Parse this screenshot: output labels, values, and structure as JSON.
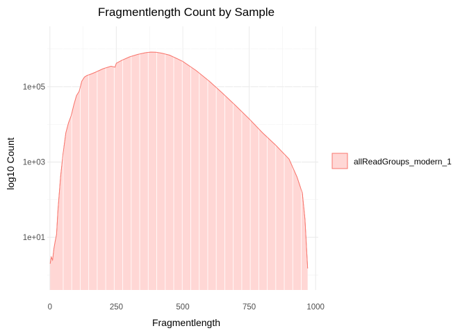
{
  "chart_data": {
    "type": "area",
    "title": "Fragmentlength Count by Sample",
    "xlabel": "Fragmentlength",
    "ylabel": "log10 Count",
    "x_scale": "linear",
    "y_scale": "log10",
    "xlim": [
      -10,
      1010
    ],
    "ylim": [
      0.4,
      4000000
    ],
    "x_ticks": [
      0,
      250,
      500,
      750,
      1000
    ],
    "x_tick_labels": [
      "0",
      "250",
      "500",
      "750",
      "1000"
    ],
    "y_ticks": [
      10,
      1000,
      100000
    ],
    "y_tick_labels": [
      "1e+01",
      "1e+03",
      "1e+05"
    ],
    "grid": true,
    "legend_position": "right",
    "series": [
      {
        "name": "allReadGroups_modern_1",
        "fill_color": "#ffd7d5",
        "line_color": "#f8766d",
        "x": [
          1,
          5,
          10,
          15,
          20,
          25,
          30,
          40,
          50,
          60,
          70,
          80,
          90,
          100,
          110,
          120,
          130,
          140,
          150,
          170,
          200,
          230,
          245,
          250,
          270,
          300,
          330,
          360,
          380,
          400,
          420,
          450,
          480,
          500,
          550,
          600,
          650,
          700,
          750,
          800,
          850,
          900,
          930,
          950,
          960,
          970
        ],
        "y": [
          2,
          3,
          2.5,
          5,
          8,
          12,
          50,
          400,
          1800,
          6000,
          11000,
          17000,
          33000,
          58000,
          75000,
          140000,
          180000,
          200000,
          210000,
          240000,
          300000,
          350000,
          330000,
          420000,
          500000,
          620000,
          720000,
          800000,
          830000,
          820000,
          780000,
          690000,
          550000,
          470000,
          270000,
          140000,
          67000,
          31000,
          14000,
          6000,
          2800,
          1200,
          400,
          150,
          30,
          1.5
        ]
      }
    ]
  }
}
